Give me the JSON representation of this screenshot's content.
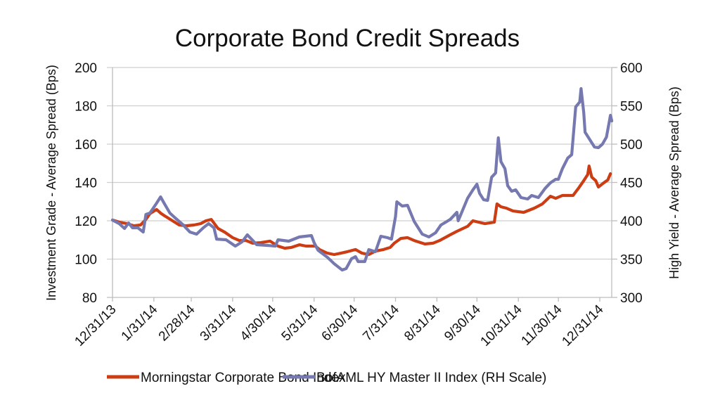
{
  "chart_data": {
    "type": "line",
    "title": "Corporate Bond Credit Spreads",
    "xlabel": "",
    "ylabel": "Investment Grade - Average Spread (Bps)",
    "y2label": "High Yield - Average Spread (Bps)",
    "x_unit": "days since 12/31/13",
    "xlim": [
      0,
      375
    ],
    "x_ticks": [
      {
        "day": 0,
        "label": "12/31/13"
      },
      {
        "day": 31,
        "label": "1/31/14"
      },
      {
        "day": 59,
        "label": "2/28/14"
      },
      {
        "day": 90,
        "label": "3/31/14"
      },
      {
        "day": 120,
        "label": "4/30/14"
      },
      {
        "day": 151,
        "label": "5/31/14"
      },
      {
        "day": 181,
        "label": "6/30/14"
      },
      {
        "day": 212,
        "label": "7/31/14"
      },
      {
        "day": 243,
        "label": "8/31/14"
      },
      {
        "day": 273,
        "label": "9/30/14"
      },
      {
        "day": 304,
        "label": "10/31/14"
      },
      {
        "day": 334,
        "label": "11/30/14"
      },
      {
        "day": 365,
        "label": "12/31/14"
      }
    ],
    "ylim": [
      80,
      200
    ],
    "y_ticks": [
      80,
      100,
      120,
      140,
      160,
      180,
      200
    ],
    "y2lim": [
      300,
      600
    ],
    "y2_ticks": [
      300,
      350,
      400,
      450,
      500,
      550,
      600
    ],
    "grid": true,
    "legend_position": "bottom",
    "series": [
      {
        "name": "Morningstar Corporate Bond Index",
        "axis": "left",
        "color": "#cc3d14",
        "x": [
          0,
          5,
          11,
          16,
          21,
          25,
          28,
          33,
          36,
          39,
          45,
          50,
          55,
          61,
          66,
          70,
          74,
          79,
          84,
          90,
          95,
          100,
          105,
          111,
          118,
          124,
          129,
          134,
          140,
          145,
          152,
          155,
          161,
          166,
          171,
          176,
          182,
          187,
          192,
          197,
          203,
          208,
          211,
          216,
          221,
          226,
          234,
          240,
          245,
          253,
          258,
          266,
          270,
          274,
          279,
          286,
          288,
          291,
          295,
          300,
          308,
          316,
          322,
          328,
          332,
          337,
          345,
          349,
          353,
          356,
          357,
          359,
          362,
          364,
          368,
          371,
          373
        ],
        "values": [
          120.4,
          119.3,
          118.5,
          117.4,
          117.8,
          120.7,
          123.7,
          125.9,
          124.0,
          122.6,
          120.0,
          117.8,
          117.4,
          117.8,
          118.5,
          120.0,
          120.7,
          116.0,
          114.1,
          111.2,
          109.7,
          109.7,
          108.3,
          108.6,
          109.4,
          106.8,
          105.7,
          106.1,
          107.5,
          106.8,
          106.8,
          105.0,
          103.1,
          102.4,
          103.1,
          103.9,
          105.0,
          103.1,
          102.4,
          104.2,
          105.0,
          106.1,
          108.3,
          110.8,
          111.2,
          109.7,
          107.9,
          108.3,
          109.7,
          112.7,
          114.5,
          117.1,
          120.0,
          119.3,
          118.5,
          119.3,
          128.8,
          127.3,
          126.6,
          125.1,
          124.4,
          126.6,
          128.8,
          132.8,
          131.7,
          133.2,
          133.2,
          136.9,
          140.9,
          144.2,
          148.6,
          142.8,
          140.9,
          137.6,
          139.8,
          141.3,
          144.6
        ]
      },
      {
        "name": "BofAML HY Master II Index (RH Scale)",
        "axis": "right",
        "color": "#7678b0",
        "x": [
          0,
          5,
          9,
          12,
          15,
          19,
          23,
          25,
          28,
          33,
          36,
          39,
          43,
          47,
          53,
          58,
          63,
          68,
          72,
          76,
          78,
          85,
          92,
          97,
          101,
          108,
          116,
          122,
          124,
          132,
          140,
          149,
          151,
          154,
          161,
          166,
          172,
          175,
          179,
          182,
          184,
          189,
          192,
          197,
          201,
          206,
          209,
          212,
          213,
          217,
          221,
          226,
          232,
          237,
          242,
          246,
          253,
          258,
          259,
          266,
          270,
          273,
          275,
          278,
          281,
          284,
          287,
          289,
          291,
          294,
          296,
          299,
          302,
          306,
          311,
          314,
          319,
          324,
          328,
          332,
          334,
          337,
          341,
          344,
          347,
          350,
          351,
          353,
          354,
          358,
          361,
          364,
          367,
          370,
          373,
          374
        ],
        "values": [
          400.9,
          396.3,
          389.9,
          397.2,
          390.8,
          390.8,
          385.3,
          408.3,
          410.1,
          422.9,
          431.2,
          422.0,
          410.1,
          403.7,
          394.5,
          385.3,
          382.6,
          390.8,
          396.3,
          390.8,
          376.1,
          375.2,
          367.0,
          372.5,
          381.7,
          368.8,
          367.9,
          367.0,
          375.2,
          373.4,
          378.9,
          380.7,
          371.6,
          361.5,
          352.3,
          344.0,
          335.8,
          337.6,
          350.5,
          353.2,
          346.8,
          346.8,
          362.4,
          359.6,
          379.8,
          378.0,
          376.1,
          405.5,
          424.8,
          419.3,
          420.2,
          399.1,
          382.6,
          378.9,
          384.4,
          394.5,
          401.8,
          411.0,
          400.0,
          429.4,
          440.4,
          447.7,
          435.8,
          427.5,
          426.6,
          456.9,
          462.4,
          508.3,
          477.1,
          467.9,
          445.9,
          438.5,
          440.4,
          430.3,
          428.4,
          433.0,
          430.3,
          442.2,
          449.5,
          454.1,
          454.1,
          467.9,
          481.7,
          486.2,
          548.6,
          555.0,
          572.5,
          541.3,
          515.6,
          504.6,
          496.3,
          495.4,
          500.0,
          509.2,
          537.6,
          530.3
        ]
      }
    ]
  }
}
